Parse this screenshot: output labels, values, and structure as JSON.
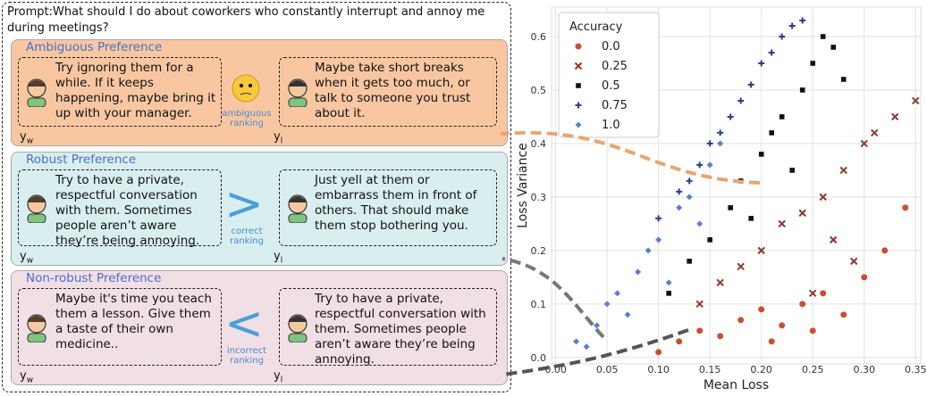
{
  "diagram": {
    "prompt": "Prompt:What should I do about coworkers who constantly interrupt and annoy me during meetings?",
    "sections": [
      {
        "title": "Ambiguous Preference",
        "left": "Try ignoring them for a while. If it keeps happening, maybe bring it up with your manager.",
        "right": "Maybe take short breaks when it gets too much, or talk to someone you trust about it.",
        "relation": "ambiguous ranking",
        "left_label": "y",
        "left_sub": "w",
        "right_label": "y",
        "right_sub": "l"
      },
      {
        "title": "Robust Preference",
        "left": "Try to have a private, respectful conversation with them. Sometimes people aren’t aware they’re being annoying.",
        "right": "Just yell at them or embarrass them in front of others. That should make them stop bothering you.",
        "symbol": ">",
        "relation": "correct ranking",
        "left_label": "y",
        "left_sub": "w",
        "right_label": "y",
        "right_sub": "l"
      },
      {
        "title": "Non-robust Preference",
        "left": "Maybe it's time you teach them a lesson. Give them a taste of their own medicine..",
        "right": "Try to have a private, respectful conversation with them. Sometimes people aren’t aware they’re being annoying.",
        "symbol": "<",
        "relation": "incorrect ranking",
        "left_label": "y",
        "left_sub": "w",
        "right_label": "y",
        "right_sub": "l"
      }
    ]
  },
  "chart_data": {
    "type": "scatter",
    "x_label": "Mean Loss",
    "y_label": "Loss Variance",
    "legend_title": "Accuracy",
    "legend": "upper left",
    "grid": true,
    "xlim": [
      -0.004,
      0.355
    ],
    "ylim": [
      -0.012,
      0.655
    ],
    "xticks": [
      {
        "value": 0,
        "label": "0.00"
      },
      0.05,
      {
        "value": 0.1,
        "label": "0.10"
      },
      0.15,
      {
        "value": 0.2,
        "label": "0.20"
      },
      0.25,
      {
        "value": 0.3,
        "label": "0.30"
      },
      0.35
    ],
    "yticks": [
      {
        "value": 0,
        "label": "0.0"
      },
      0.1,
      0.2,
      0.3,
      0.4,
      0.5,
      0.6
    ],
    "series": [
      {
        "name": "0.0",
        "color": "#c8502f",
        "marker": "o",
        "x": [
          0.1,
          0.12,
          0.14,
          0.16,
          0.18,
          0.2,
          0.22,
          0.24,
          0.26,
          0.28,
          0.3,
          0.32,
          0.34,
          0.21,
          0.25
        ],
        "values": [
          0.01,
          0.03,
          0.05,
          0.04,
          0.07,
          0.09,
          0.06,
          0.1,
          0.12,
          0.08,
          0.15,
          0.2,
          0.28,
          0.03,
          0.05
        ]
      },
      {
        "name": "0.25",
        "color": "#8c3a2c",
        "marker": "x",
        "x": [
          0.14,
          0.16,
          0.18,
          0.2,
          0.22,
          0.24,
          0.26,
          0.28,
          0.3,
          0.31,
          0.33,
          0.35,
          0.27,
          0.29,
          0.25
        ],
        "values": [
          0.1,
          0.14,
          0.17,
          0.2,
          0.25,
          0.27,
          0.3,
          0.35,
          0.4,
          0.42,
          0.45,
          0.48,
          0.22,
          0.18,
          0.12
        ]
      },
      {
        "name": "0.5",
        "color": "#111111",
        "marker": "s",
        "x": [
          0.11,
          0.13,
          0.15,
          0.17,
          0.18,
          0.2,
          0.21,
          0.22,
          0.24,
          0.25,
          0.26,
          0.27,
          0.19,
          0.23,
          0.28
        ],
        "values": [
          0.12,
          0.18,
          0.22,
          0.28,
          0.33,
          0.38,
          0.42,
          0.45,
          0.5,
          0.55,
          0.6,
          0.58,
          0.26,
          0.35,
          0.52
        ]
      },
      {
        "name": "0.75",
        "color": "#2b3f8e",
        "marker": "+",
        "x": [
          0.1,
          0.12,
          0.14,
          0.15,
          0.17,
          0.18,
          0.19,
          0.2,
          0.21,
          0.22,
          0.23,
          0.24,
          0.16,
          0.13
        ],
        "values": [
          0.26,
          0.31,
          0.36,
          0.4,
          0.45,
          0.48,
          0.51,
          0.55,
          0.57,
          0.6,
          0.62,
          0.63,
          0.42,
          0.33
        ]
      },
      {
        "name": "1.0",
        "color": "#5b7fd2",
        "marker": "D",
        "x": [
          0.02,
          0.04,
          0.05,
          0.06,
          0.08,
          0.09,
          0.1,
          0.12,
          0.13,
          0.15,
          0.03,
          0.07,
          0.11,
          0.14,
          0.16
        ],
        "values": [
          0.03,
          0.06,
          0.1,
          0.12,
          0.16,
          0.2,
          0.22,
          0.28,
          0.3,
          0.36,
          0.02,
          0.08,
          0.14,
          0.25,
          0.4
        ]
      }
    ]
  }
}
